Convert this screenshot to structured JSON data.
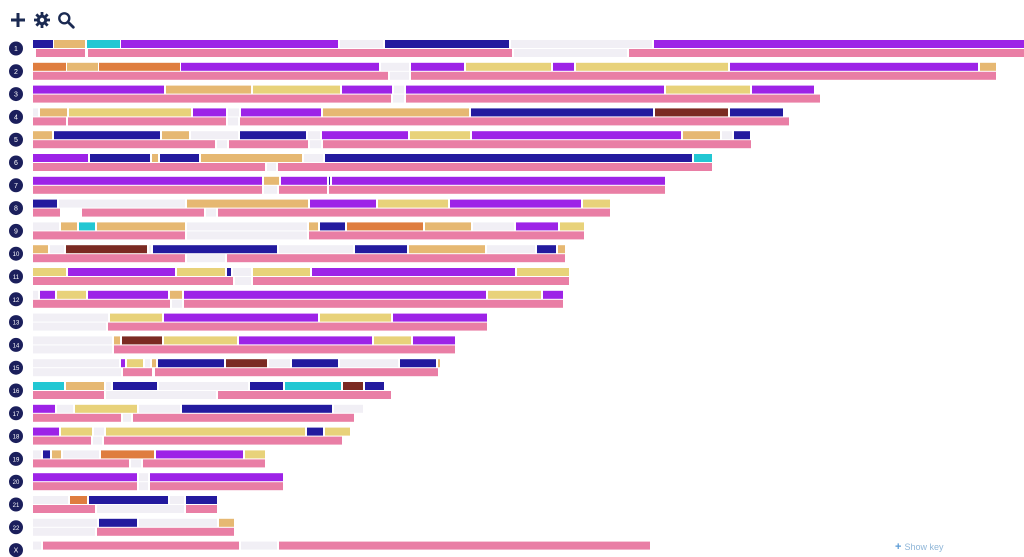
{
  "toolbar": {
    "add_icon": "plus-icon",
    "settings_icon": "gear-icon",
    "search_icon": "search-icon"
  },
  "footer": {
    "show_key_label": "Show key"
  },
  "palette": {
    "purple": "#9d23e7",
    "navy": "#231a9e",
    "tan": "#e6b872",
    "khaki": "#e8d27a",
    "orange": "#df7d3f",
    "cyan": "#22c7d3",
    "maroon": "#7b2a22",
    "gap": "#f1eff5",
    "pink": "#e97ea5",
    "label_bg": "#1b1f5c"
  },
  "chromosomes": [
    {
      "label": "1",
      "top": [
        [
          "navy",
          33,
          53
        ],
        [
          "tan",
          54,
          85
        ],
        [
          "cyan",
          87,
          120
        ],
        [
          "purple",
          121,
          338
        ],
        [
          "gap",
          340,
          383
        ],
        [
          "navy",
          385,
          509
        ],
        [
          "gap",
          511,
          652
        ],
        [
          "purple",
          654,
          1024
        ]
      ],
      "bottom": [
        [
          "pink",
          36,
          85
        ],
        [
          "pink",
          88,
          512
        ],
        [
          "gap",
          514,
          627
        ],
        [
          "pink",
          629,
          1024
        ]
      ]
    },
    {
      "label": "2",
      "top": [
        [
          "orange",
          33,
          66
        ],
        [
          "tan",
          67,
          98
        ],
        [
          "orange",
          99,
          180
        ],
        [
          "purple",
          181,
          379
        ],
        [
          "gap",
          381,
          409
        ],
        [
          "purple",
          411,
          464
        ],
        [
          "khaki",
          466,
          551
        ],
        [
          "purple",
          553,
          574
        ],
        [
          "khaki",
          576,
          728
        ],
        [
          "purple",
          730,
          978
        ],
        [
          "tan",
          980,
          996
        ]
      ],
      "bottom": [
        [
          "pink",
          33,
          388
        ],
        [
          "gap",
          390,
          409
        ],
        [
          "pink",
          411,
          996
        ]
      ]
    },
    {
      "label": "3",
      "top": [
        [
          "purple",
          33,
          164
        ],
        [
          "tan",
          166,
          251
        ],
        [
          "khaki",
          253,
          340
        ],
        [
          "purple",
          342,
          392
        ],
        [
          "gap",
          394,
          404
        ],
        [
          "purple",
          406,
          664
        ],
        [
          "khaki",
          666,
          750
        ],
        [
          "purple",
          752,
          814
        ]
      ],
      "bottom": [
        [
          "pink",
          33,
          391
        ],
        [
          "gap",
          393,
          404
        ],
        [
          "pink",
          406,
          820
        ]
      ]
    },
    {
      "label": "4",
      "top": [
        [
          "gap",
          33,
          38
        ],
        [
          "tan",
          40,
          67
        ],
        [
          "khaki",
          69,
          191
        ],
        [
          "purple",
          193,
          226
        ],
        [
          "gap",
          228,
          239
        ],
        [
          "purple",
          241,
          321
        ],
        [
          "tan",
          323,
          469
        ],
        [
          "navy",
          471,
          653
        ],
        [
          "maroon",
          655,
          728
        ],
        [
          "navy",
          730,
          783
        ]
      ],
      "bottom": [
        [
          "pink",
          33,
          66
        ],
        [
          "pink",
          68,
          226
        ],
        [
          "gap",
          228,
          238
        ],
        [
          "pink",
          240,
          789
        ]
      ]
    },
    {
      "label": "5",
      "top": [
        [
          "tan",
          33,
          52
        ],
        [
          "navy",
          54,
          160
        ],
        [
          "tan",
          162,
          189
        ],
        [
          "gap",
          191,
          238
        ],
        [
          "navy",
          240,
          306
        ],
        [
          "gap",
          308,
          320
        ],
        [
          "purple",
          322,
          408
        ],
        [
          "khaki",
          410,
          470
        ],
        [
          "purple",
          472,
          681
        ],
        [
          "tan",
          683,
          720
        ],
        [
          "gap",
          722,
          732
        ],
        [
          "navy",
          734,
          750
        ]
      ],
      "bottom": [
        [
          "pink",
          33,
          215
        ],
        [
          "gap",
          217,
          227
        ],
        [
          "pink",
          229,
          308
        ],
        [
          "gap",
          310,
          321
        ],
        [
          "pink",
          323,
          751
        ]
      ]
    },
    {
      "label": "6",
      "top": [
        [
          "purple",
          33,
          88
        ],
        [
          "navy",
          90,
          150
        ],
        [
          "tan",
          152,
          158
        ],
        [
          "navy",
          160,
          199
        ],
        [
          "tan",
          201,
          302
        ],
        [
          "gap",
          304,
          323
        ],
        [
          "navy",
          325,
          692
        ],
        [
          "cyan",
          694,
          712
        ]
      ],
      "bottom": [
        [
          "pink",
          33,
          265
        ],
        [
          "gap",
          267,
          276
        ],
        [
          "pink",
          278,
          712
        ]
      ]
    },
    {
      "label": "7",
      "top": [
        [
          "purple",
          33,
          262
        ],
        [
          "tan",
          264,
          279
        ],
        [
          "purple",
          281,
          327
        ],
        [
          "navy",
          329,
          330
        ],
        [
          "purple",
          332,
          665
        ]
      ],
      "bottom": [
        [
          "pink",
          33,
          262
        ],
        [
          "gap",
          264,
          277
        ],
        [
          "pink",
          279,
          327
        ],
        [
          "pink",
          329,
          665
        ]
      ]
    },
    {
      "label": "8",
      "top": [
        [
          "navy",
          33,
          57
        ],
        [
          "gap",
          59,
          185
        ],
        [
          "tan",
          187,
          308
        ],
        [
          "purple",
          310,
          376
        ],
        [
          "khaki",
          378,
          448
        ],
        [
          "purple",
          450,
          581
        ],
        [
          "khaki",
          583,
          610
        ]
      ],
      "bottom": [
        [
          "pink",
          33,
          60
        ],
        [
          "pink",
          82,
          204
        ],
        [
          "gap",
          206,
          216
        ],
        [
          "pink",
          218,
          610
        ]
      ]
    },
    {
      "label": "9",
      "top": [
        [
          "gap",
          33,
          59
        ],
        [
          "tan",
          61,
          77
        ],
        [
          "cyan",
          79,
          95
        ],
        [
          "tan",
          97,
          185
        ],
        [
          "gap",
          187,
          307
        ],
        [
          "tan",
          309,
          318
        ],
        [
          "navy",
          320,
          345
        ],
        [
          "orange",
          347,
          423
        ],
        [
          "tan",
          425,
          471
        ],
        [
          "gap",
          473,
          514
        ],
        [
          "purple",
          516,
          558
        ],
        [
          "khaki",
          560,
          584
        ]
      ],
      "bottom": [
        [
          "pink",
          33,
          185
        ],
        [
          "gap",
          187,
          307
        ],
        [
          "pink",
          309,
          584
        ]
      ]
    },
    {
      "label": "10",
      "top": [
        [
          "tan",
          33,
          48
        ],
        [
          "gap",
          50,
          64
        ],
        [
          "maroon",
          66,
          147
        ],
        [
          "gap",
          149,
          151
        ],
        [
          "navy",
          153,
          277
        ],
        [
          "gap",
          279,
          353
        ],
        [
          "navy",
          355,
          407
        ],
        [
          "tan",
          409,
          485
        ],
        [
          "gap",
          487,
          535
        ],
        [
          "navy",
          537,
          556
        ],
        [
          "tan",
          558,
          565
        ]
      ],
      "bottom": [
        [
          "pink",
          33,
          185
        ],
        [
          "gap",
          187,
          225
        ],
        [
          "pink",
          227,
          565
        ]
      ]
    },
    {
      "label": "11",
      "top": [
        [
          "khaki",
          33,
          66
        ],
        [
          "purple",
          68,
          175
        ],
        [
          "khaki",
          177,
          225
        ],
        [
          "navy",
          227,
          231
        ],
        [
          "gap",
          233,
          251
        ],
        [
          "khaki",
          253,
          310
        ],
        [
          "purple",
          312,
          515
        ],
        [
          "khaki",
          517,
          569
        ]
      ],
      "bottom": [
        [
          "pink",
          33,
          233
        ],
        [
          "gap",
          235,
          251
        ],
        [
          "pink",
          253,
          569
        ]
      ]
    },
    {
      "label": "12",
      "top": [
        [
          "gap",
          33,
          38
        ],
        [
          "purple",
          40,
          55
        ],
        [
          "khaki",
          57,
          86
        ],
        [
          "purple",
          88,
          168
        ],
        [
          "tan",
          170,
          182
        ],
        [
          "purple",
          184,
          486
        ],
        [
          "khaki",
          488,
          541
        ],
        [
          "purple",
          543,
          563
        ]
      ],
      "bottom": [
        [
          "pink",
          33,
          170
        ],
        [
          "gap",
          172,
          182
        ],
        [
          "pink",
          184,
          563
        ]
      ]
    },
    {
      "label": "13",
      "top": [
        [
          "gap",
          33,
          108
        ],
        [
          "khaki",
          110,
          162
        ],
        [
          "purple",
          164,
          318
        ],
        [
          "khaki",
          320,
          391
        ],
        [
          "purple",
          393,
          487
        ]
      ],
      "bottom": [
        [
          "gap",
          33,
          106
        ],
        [
          "pink",
          108,
          487
        ]
      ]
    },
    {
      "label": "14",
      "top": [
        [
          "gap",
          33,
          112
        ],
        [
          "tan",
          114,
          120
        ],
        [
          "maroon",
          122,
          162
        ],
        [
          "khaki",
          164,
          237
        ],
        [
          "purple",
          239,
          372
        ],
        [
          "khaki",
          374,
          411
        ],
        [
          "purple",
          413,
          455
        ]
      ],
      "bottom": [
        [
          "gap",
          33,
          112
        ],
        [
          "pink",
          114,
          455
        ]
      ]
    },
    {
      "label": "15",
      "top": [
        [
          "gap",
          33,
          119
        ],
        [
          "purple",
          121,
          125
        ],
        [
          "khaki",
          127,
          143
        ],
        [
          "gap",
          145,
          150
        ],
        [
          "tan",
          152,
          156
        ],
        [
          "navy",
          158,
          224
        ],
        [
          "maroon",
          226,
          267
        ],
        [
          "gap",
          269,
          290
        ],
        [
          "navy",
          292,
          338
        ],
        [
          "gap",
          340,
          398
        ],
        [
          "navy",
          400,
          436
        ],
        [
          "tan",
          438,
          440
        ]
      ],
      "bottom": [
        [
          "gap",
          33,
          121
        ],
        [
          "pink",
          123,
          152
        ],
        [
          "pink",
          155,
          438
        ]
      ]
    },
    {
      "label": "16",
      "top": [
        [
          "cyan",
          33,
          64
        ],
        [
          "tan",
          66,
          104
        ],
        [
          "gap",
          106,
          111
        ],
        [
          "navy",
          113,
          157
        ],
        [
          "gap",
          159,
          248
        ],
        [
          "navy",
          250,
          283
        ],
        [
          "cyan",
          285,
          341
        ],
        [
          "maroon",
          343,
          363
        ],
        [
          "navy",
          365,
          384
        ]
      ],
      "bottom": [
        [
          "pink",
          33,
          104
        ],
        [
          "gap",
          106,
          216
        ],
        [
          "pink",
          218,
          391
        ]
      ]
    },
    {
      "label": "17",
      "top": [
        [
          "purple",
          33,
          55
        ],
        [
          "gap",
          57,
          73
        ],
        [
          "khaki",
          75,
          137
        ],
        [
          "gap",
          139,
          180
        ],
        [
          "navy",
          182,
          332
        ],
        [
          "gap",
          334,
          363
        ]
      ],
      "bottom": [
        [
          "pink",
          33,
          121
        ],
        [
          "gap",
          123,
          131
        ],
        [
          "pink",
          133,
          354
        ]
      ]
    },
    {
      "label": "18",
      "top": [
        [
          "purple",
          33,
          59
        ],
        [
          "khaki",
          61,
          92
        ],
        [
          "gap",
          94,
          104
        ],
        [
          "khaki",
          106,
          305
        ],
        [
          "navy",
          307,
          323
        ],
        [
          "khaki",
          325,
          350
        ]
      ],
      "bottom": [
        [
          "pink",
          33,
          91
        ],
        [
          "gap",
          93,
          102
        ],
        [
          "pink",
          104,
          342
        ]
      ]
    },
    {
      "label": "19",
      "top": [
        [
          "gap",
          33,
          41
        ],
        [
          "navy",
          43,
          50
        ],
        [
          "tan",
          52,
          61
        ],
        [
          "gap",
          63,
          99
        ],
        [
          "orange",
          101,
          154
        ],
        [
          "purple",
          156,
          243
        ],
        [
          "khaki",
          245,
          265
        ]
      ],
      "bottom": [
        [
          "pink",
          33,
          129
        ],
        [
          "gap",
          131,
          141
        ],
        [
          "pink",
          143,
          265
        ]
      ]
    },
    {
      "label": "20",
      "top": [
        [
          "purple",
          33,
          137
        ],
        [
          "gap",
          139,
          148
        ],
        [
          "purple",
          150,
          283
        ]
      ],
      "bottom": [
        [
          "pink",
          33,
          137
        ],
        [
          "gap",
          139,
          148
        ],
        [
          "pink",
          150,
          283
        ]
      ]
    },
    {
      "label": "21",
      "top": [
        [
          "gap",
          33,
          68
        ],
        [
          "orange",
          70,
          87
        ],
        [
          "navy",
          89,
          168
        ],
        [
          "gap",
          170,
          184
        ],
        [
          "navy",
          186,
          217
        ]
      ],
      "bottom": [
        [
          "pink",
          33,
          95
        ],
        [
          "gap",
          97,
          184
        ],
        [
          "pink",
          186,
          217
        ]
      ]
    },
    {
      "label": "22",
      "top": [
        [
          "gap",
          33,
          97
        ],
        [
          "navy",
          99,
          137
        ],
        [
          "gap",
          139,
          217
        ],
        [
          "tan",
          219,
          234
        ]
      ],
      "bottom": [
        [
          "gap",
          33,
          95
        ],
        [
          "pink",
          97,
          234
        ]
      ]
    },
    {
      "label": "X",
      "top": [
        [
          "gap",
          33,
          41
        ],
        [
          "pink",
          43,
          239
        ],
        [
          "gap",
          241,
          277
        ],
        [
          "pink",
          279,
          650
        ]
      ],
      "bottom": []
    }
  ]
}
